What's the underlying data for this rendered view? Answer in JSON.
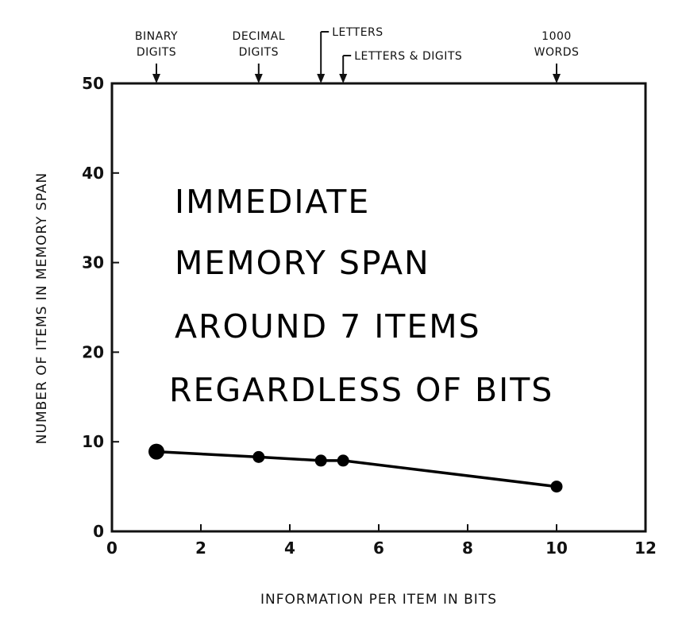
{
  "chart_data": {
    "type": "line",
    "xlabel": "INFORMATION PER ITEM IN BITS",
    "ylabel": "NUMBER OF ITEMS IN MEMORY SPAN",
    "xlim": [
      0,
      12
    ],
    "ylim": [
      0,
      50
    ],
    "x_ticks": [
      "0",
      "2",
      "4",
      "6",
      "8",
      "10",
      "12"
    ],
    "y_ticks": [
      "0",
      "10",
      "20",
      "30",
      "40",
      "50"
    ],
    "grid": false,
    "series": [
      {
        "x": [
          1.0,
          3.3,
          4.7,
          5.2,
          10.0
        ],
        "y": [
          8.9,
          8.3,
          7.9,
          7.9,
          5.0
        ]
      }
    ],
    "top_markers": [
      {
        "x": 1.0,
        "label_lines": [
          "BINARY",
          "DIGITS"
        ]
      },
      {
        "x": 3.3,
        "label_lines": [
          "DECIMAL",
          "DIGITS"
        ]
      },
      {
        "x": 4.7,
        "label_lines": [
          "LETTERS"
        ]
      },
      {
        "x": 5.2,
        "label_lines": [
          "LETTERS & DIGITS"
        ]
      },
      {
        "x": 10.0,
        "label_lines": [
          "1000",
          "WORDS"
        ]
      }
    ],
    "annotation_lines": [
      "IMMEDIATE",
      "MEMORY SPAN",
      "AROUND 7 ITEMS",
      "REGARDLESS OF BITS"
    ]
  }
}
